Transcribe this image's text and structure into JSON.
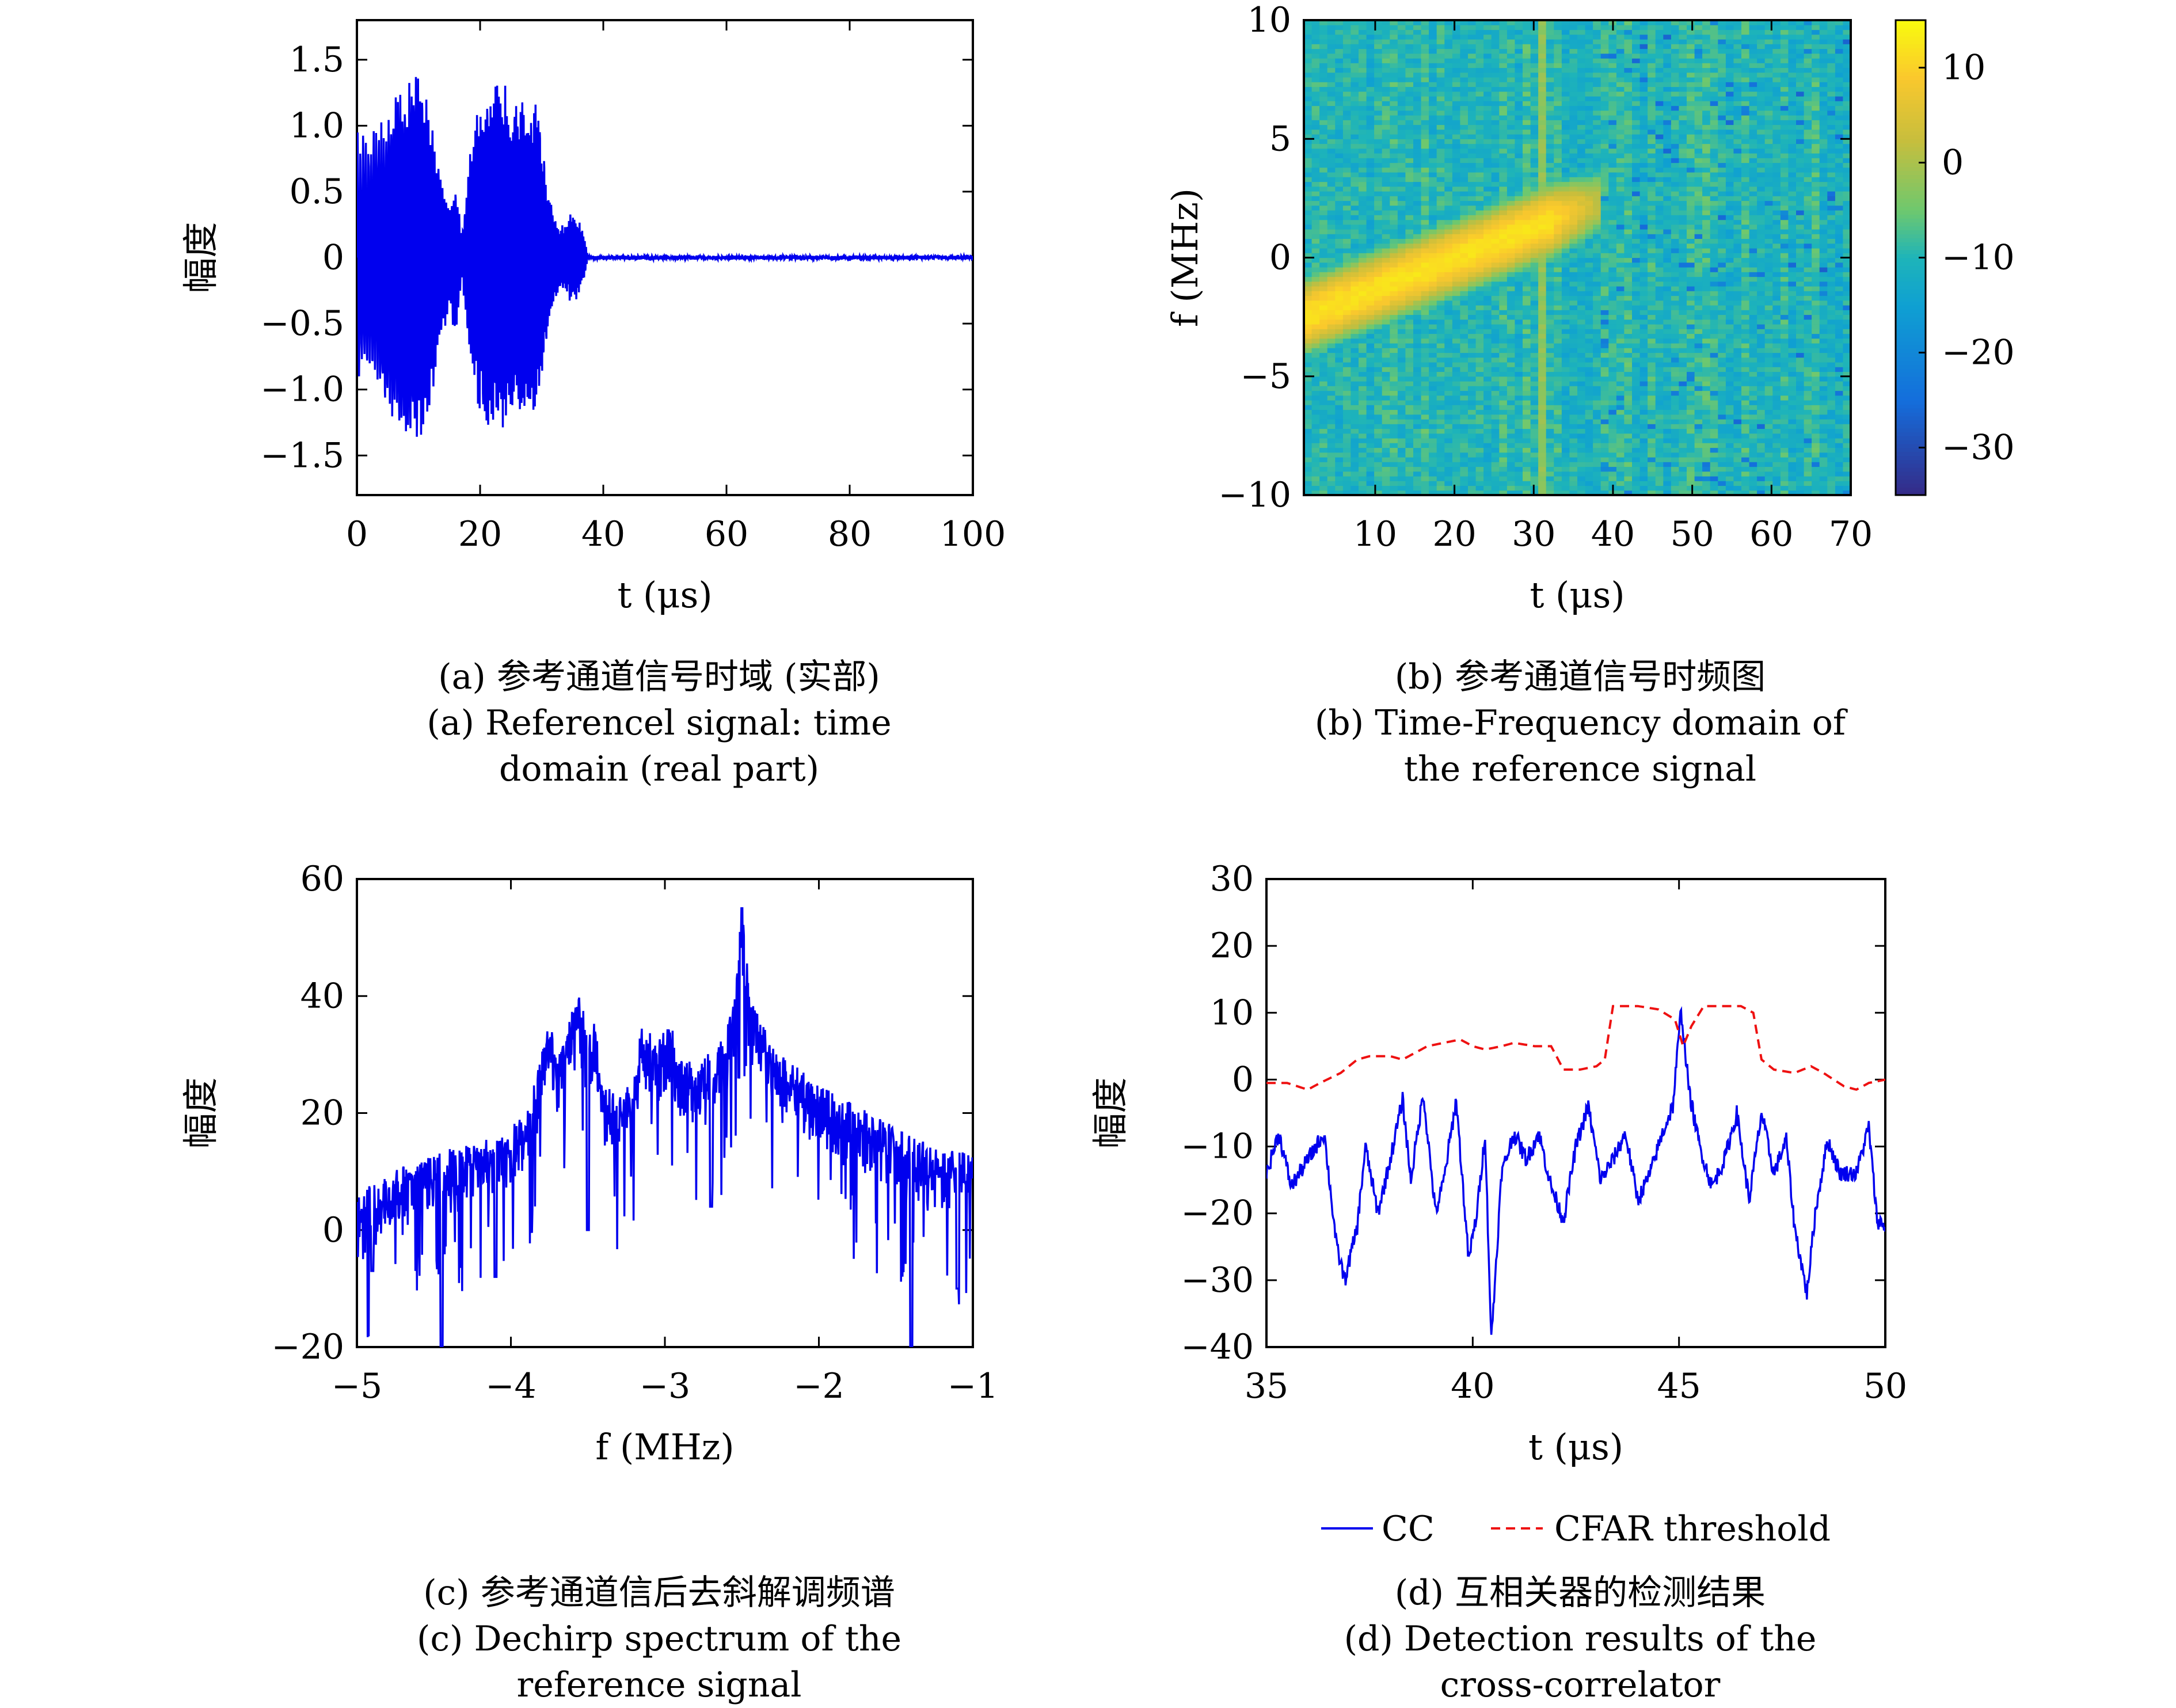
{
  "captions": {
    "a_cn": "(a) 参考通道信号时域 (实部)",
    "a_en1": "(a) Referencel signal: time",
    "a_en2": "domain (real part)",
    "b_cn": "(b) 参考通道信号时频图",
    "b_en1": "(b) Time-Frequency domain of",
    "b_en2": "the reference signal",
    "c_cn": "(c) 参考通道信后去斜解调频谱",
    "c_en1": "(c) Dechirp spectrum of the",
    "c_en2": "reference signal",
    "d_cn": "(d) 互相关器的检测结果",
    "d_en1": "(d) Detection results of the",
    "d_en2": "cross-correlator"
  },
  "colors": {
    "line": "#0000ee",
    "threshold": "#ee1111",
    "axes": "#000000"
  },
  "chart_data": [
    {
      "id": "a",
      "type": "line",
      "xlabel": "t (μs)",
      "ylabel": "幅度",
      "xlim": [
        0,
        100
      ],
      "ylim": [
        -1.8,
        1.8
      ],
      "xticks": [
        0,
        20,
        40,
        60,
        80,
        100
      ],
      "xtick_labels": [
        "0",
        "20",
        "40",
        "60",
        "80",
        "100"
      ],
      "yticks": [
        -1.5,
        -1.0,
        -0.5,
        0,
        0.5,
        1.0,
        1.5
      ],
      "ytick_labels": [
        "−1.5",
        "−1.0",
        "−0.5",
        "0",
        "0.5",
        "1.0",
        "1.5"
      ],
      "series": [
        {
          "envelope": [
            [
              0,
              0.95
            ],
            [
              1,
              0.95
            ],
            [
              4,
              1.05
            ],
            [
              6,
              1.3
            ],
            [
              8,
              1.35
            ],
            [
              10,
              1.45
            ],
            [
              11,
              1.3
            ],
            [
              12,
              1.2
            ],
            [
              13,
              0.8
            ],
            [
              15,
              0.4
            ],
            [
              16,
              0.65
            ],
            [
              17,
              0.15
            ],
            [
              18,
              0.65
            ],
            [
              19,
              1.05
            ],
            [
              20,
              1.2
            ],
            [
              21,
              1.3
            ],
            [
              22,
              1.35
            ],
            [
              23,
              1.3
            ],
            [
              24,
              1.35
            ],
            [
              25,
              1.2
            ],
            [
              27,
              1.25
            ],
            [
              29,
              1.2
            ],
            [
              30,
              1.1
            ],
            [
              31,
              0.6
            ],
            [
              32,
              0.35
            ],
            [
              33,
              0.25
            ],
            [
              34,
              0.3
            ],
            [
              35,
              0.35
            ],
            [
              36,
              0.3
            ],
            [
              37,
              0.15
            ],
            [
              37.5,
              0.01
            ],
            [
              100,
              0.01
            ]
          ]
        }
      ]
    },
    {
      "id": "b",
      "type": "heatmap",
      "xlabel": "t (μs)",
      "ylabel": "f (MHz)",
      "xlim": [
        1,
        70
      ],
      "ylim": [
        -10,
        10
      ],
      "xticks": [
        10,
        20,
        30,
        40,
        50,
        60,
        70
      ],
      "xtick_labels": [
        "10",
        "20",
        "30",
        "40",
        "50",
        "60",
        "70"
      ],
      "yticks": [
        -10,
        -5,
        0,
        5,
        10
      ],
      "ytick_labels": [
        "−10",
        "−5",
        "0",
        "5",
        "10"
      ],
      "colorbar": {
        "range": [
          -35,
          15
        ],
        "ticks": [
          10,
          0,
          -10,
          -20,
          -30
        ],
        "tick_labels": [
          "10",
          "0",
          "−10",
          "−20",
          "−30"
        ]
      },
      "chirp": {
        "t_start": 1,
        "f_start": -2.5,
        "t_end": 38,
        "f_end": 2.3,
        "peak_level": 12
      },
      "vertical_stripe_t": 31,
      "background_level": -10
    },
    {
      "id": "c",
      "type": "line",
      "xlabel": "f (MHz)",
      "ylabel": "幅度",
      "xlim": [
        -5,
        -1
      ],
      "ylim": [
        -20,
        60
      ],
      "xticks": [
        -5,
        -4,
        -3,
        -2,
        -1
      ],
      "xtick_labels": [
        "−5",
        "−4",
        "−3",
        "−2",
        "−1"
      ],
      "yticks": [
        -20,
        0,
        20,
        40,
        60
      ],
      "ytick_labels": [
        "−20",
        "0",
        "20",
        "40",
        "60"
      ],
      "series": [
        {
          "peaks": [
            [
              -5.0,
              6
            ],
            [
              -4.8,
              10
            ],
            [
              -4.6,
              12
            ],
            [
              -4.4,
              14
            ],
            [
              -4.2,
              15
            ],
            [
              -4.0,
              18
            ],
            [
              -3.9,
              20
            ],
            [
              -3.85,
              25
            ],
            [
              -3.75,
              36
            ],
            [
              -3.7,
              30
            ],
            [
              -3.6,
              38
            ],
            [
              -3.55,
              40.5
            ],
            [
              -3.5,
              33
            ],
            [
              -3.45,
              36
            ],
            [
              -3.4,
              25
            ],
            [
              -3.3,
              23
            ],
            [
              -3.2,
              28
            ],
            [
              -3.15,
              35
            ],
            [
              -3.05,
              33
            ],
            [
              -2.95,
              35
            ],
            [
              -2.9,
              30
            ],
            [
              -2.8,
              28
            ],
            [
              -2.7,
              31
            ],
            [
              -2.6,
              34
            ],
            [
              -2.55,
              40
            ],
            [
              -2.5,
              55
            ],
            [
              -2.45,
              41
            ],
            [
              -2.4,
              37
            ],
            [
              -2.3,
              32
            ],
            [
              -2.2,
              29
            ],
            [
              -2.0,
              25
            ],
            [
              -1.8,
              22
            ],
            [
              -1.6,
              19
            ],
            [
              -1.4,
              16
            ],
            [
              -1.2,
              14
            ],
            [
              -1.0,
              13
            ]
          ],
          "deep_dips": [
            [
              -4.45,
              -20
            ],
            [
              -1.4,
              -20
            ],
            [
              -4.1,
              -8
            ],
            [
              -4.9,
              -7
            ],
            [
              -1.1,
              -10
            ],
            [
              -3.5,
              0
            ],
            [
              -2.7,
              4
            ]
          ]
        }
      ]
    },
    {
      "id": "d",
      "type": "line",
      "xlabel": "t (μs)",
      "ylabel": "幅度",
      "xlim": [
        35,
        50
      ],
      "ylim": [
        -40,
        30
      ],
      "xticks": [
        35,
        40,
        45,
        50
      ],
      "xtick_labels": [
        "35",
        "40",
        "45",
        "50"
      ],
      "yticks": [
        -40,
        -30,
        -20,
        -10,
        0,
        10,
        20,
        30
      ],
      "ytick_labels": [
        "−40",
        "−30",
        "−20",
        "−10",
        "0",
        "10",
        "20",
        "30"
      ],
      "legend": [
        "CC",
        "CFAR threshold"
      ],
      "legend_position": "bottom",
      "series": [
        {
          "name": "CC",
          "points": [
            [
              35,
              -14
            ],
            [
              35.3,
              -8
            ],
            [
              35.6,
              -16
            ],
            [
              36,
              -12
            ],
            [
              36.4,
              -8
            ],
            [
              36.7,
              -25
            ],
            [
              36.9,
              -30
            ],
            [
              37.2,
              -22
            ],
            [
              37.4,
              -10
            ],
            [
              37.7,
              -20
            ],
            [
              38,
              -12
            ],
            [
              38.3,
              -3
            ],
            [
              38.5,
              -15
            ],
            [
              38.8,
              -2
            ],
            [
              39.1,
              -20
            ],
            [
              39.3,
              -15
            ],
            [
              39.6,
              -3
            ],
            [
              39.9,
              -27
            ],
            [
              40.1,
              -20
            ],
            [
              40.3,
              -8
            ],
            [
              40.45,
              -39
            ],
            [
              40.7,
              -14
            ],
            [
              41,
              -8
            ],
            [
              41.3,
              -12
            ],
            [
              41.6,
              -8
            ],
            [
              41.9,
              -16
            ],
            [
              42.2,
              -21
            ],
            [
              42.5,
              -10
            ],
            [
              42.8,
              -4
            ],
            [
              43.1,
              -15
            ],
            [
              43.4,
              -12
            ],
            [
              43.7,
              -8
            ],
            [
              44,
              -18
            ],
            [
              44.3,
              -14
            ],
            [
              44.6,
              -8
            ],
            [
              44.85,
              -4
            ],
            [
              45.05,
              10.5
            ],
            [
              45.25,
              -2
            ],
            [
              45.5,
              -10
            ],
            [
              45.8,
              -16
            ],
            [
              46.1,
              -12
            ],
            [
              46.4,
              -5
            ],
            [
              46.7,
              -18
            ],
            [
              47,
              -5
            ],
            [
              47.3,
              -14
            ],
            [
              47.6,
              -9
            ],
            [
              47.8,
              -22
            ],
            [
              48.1,
              -32
            ],
            [
              48.3,
              -20
            ],
            [
              48.6,
              -9
            ],
            [
              48.9,
              -14
            ],
            [
              49.3,
              -14
            ],
            [
              49.6,
              -7
            ],
            [
              49.8,
              -21
            ],
            [
              50,
              -22
            ]
          ]
        },
        {
          "name": "CFAR threshold",
          "points": [
            [
              35,
              -0.5
            ],
            [
              35.5,
              -0.5
            ],
            [
              36,
              -1.5
            ],
            [
              36.3,
              -0.5
            ],
            [
              36.8,
              1
            ],
            [
              37.2,
              3
            ],
            [
              37.5,
              3.5
            ],
            [
              38,
              3.5
            ],
            [
              38.3,
              3
            ],
            [
              38.6,
              4
            ],
            [
              38.9,
              5
            ],
            [
              39.3,
              5.5
            ],
            [
              39.7,
              6
            ],
            [
              40,
              5
            ],
            [
              40.3,
              4.5
            ],
            [
              40.7,
              5
            ],
            [
              41,
              5.5
            ],
            [
              41.5,
              5
            ],
            [
              41.9,
              5
            ],
            [
              42.2,
              1.5
            ],
            [
              42.6,
              1.5
            ],
            [
              43,
              2
            ],
            [
              43.2,
              3
            ],
            [
              43.4,
              11
            ],
            [
              44,
              11
            ],
            [
              44.5,
              10.5
            ],
            [
              44.9,
              9
            ],
            [
              45.1,
              5
            ],
            [
              45.3,
              8
            ],
            [
              45.6,
              11
            ],
            [
              46.5,
              11
            ],
            [
              46.8,
              10
            ],
            [
              47,
              3
            ],
            [
              47.3,
              1.5
            ],
            [
              47.8,
              1
            ],
            [
              48.2,
              2
            ],
            [
              48.5,
              1
            ],
            [
              49,
              -1
            ],
            [
              49.3,
              -1.5
            ],
            [
              49.6,
              -0.5
            ],
            [
              50,
              0
            ]
          ]
        }
      ]
    }
  ]
}
